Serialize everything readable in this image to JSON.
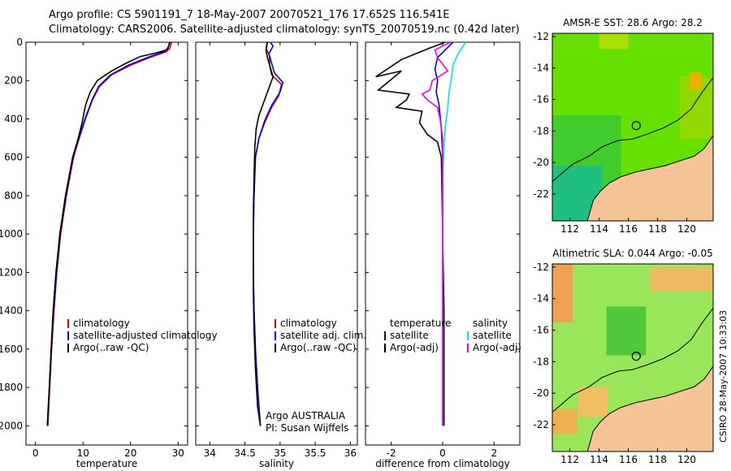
{
  "header": {
    "line1": "Argo profile: CS 5901191_7 18-May-2007 20070521_176 17.652S 116.541E",
    "line2": "Climatology: CARS2006. Satellite-adjusted climatology: synTS_20070519.nc (0.42d later)"
  },
  "credits": {
    "argo": "Argo AUSTRALIA",
    "pi": "PI: Susan Wijffels",
    "stamp": "CSIRO 28-May-2007 10:33:03"
  },
  "colors": {
    "climatology": "#dd0000",
    "satellite": "#0000ee",
    "argo": "#000000",
    "satellite_salinity": "#00e5ee",
    "argo_adj_salinity": "#ee00ee",
    "land": "#f5c496"
  },
  "chart_data": [
    {
      "id": "temperature",
      "type": "line",
      "xlabel": "temperature",
      "xticks": [
        0,
        10,
        20,
        30
      ],
      "xlim": [
        -2,
        32
      ],
      "yticks": [
        0,
        200,
        400,
        600,
        800,
        1000,
        1200,
        1400,
        1600,
        1800,
        2000
      ],
      "ylim": [
        2100,
        0
      ],
      "legend": [
        "climatology",
        "satellite-adjusted climatology",
        "Argo(..raw -QC)"
      ],
      "series": [
        {
          "name": "climatology",
          "color": "#dd0000",
          "points": [
            [
              28.6,
              0
            ],
            [
              28.3,
              30
            ],
            [
              27.5,
              50
            ],
            [
              24,
              80
            ],
            [
              20,
              120
            ],
            [
              16,
              170
            ],
            [
              13.5,
              230
            ],
            [
              12,
              300
            ],
            [
              10.5,
              400
            ],
            [
              9.2,
              500
            ],
            [
              8,
              600
            ],
            [
              6.5,
              800
            ],
            [
              5.3,
              1000
            ],
            [
              4.5,
              1200
            ],
            [
              3.9,
              1400
            ],
            [
              3.4,
              1600
            ],
            [
              3,
              1800
            ],
            [
              2.6,
              2000
            ]
          ]
        },
        {
          "name": "satellite-adjusted climatology",
          "color": "#0000ee",
          "points": [
            [
              28.2,
              0
            ],
            [
              27.9,
              30
            ],
            [
              27,
              50
            ],
            [
              23.5,
              80
            ],
            [
              19.5,
              120
            ],
            [
              15.8,
              170
            ],
            [
              13.3,
              230
            ],
            [
              11.9,
              300
            ],
            [
              10.4,
              400
            ],
            [
              9.1,
              500
            ],
            [
              7.9,
              600
            ],
            [
              6.4,
              800
            ],
            [
              5.2,
              1000
            ],
            [
              4.4,
              1200
            ],
            [
              3.8,
              1400
            ],
            [
              3.3,
              1600
            ],
            [
              2.9,
              1800
            ],
            [
              2.5,
              2000
            ]
          ]
        },
        {
          "name": "Argo(..raw -QC)",
          "color": "#000000",
          "points": [
            [
              28.3,
              0
            ],
            [
              28,
              20
            ],
            [
              27.6,
              40
            ],
            [
              25.5,
              55
            ],
            [
              22,
              75
            ],
            [
              19,
              110
            ],
            [
              16,
              150
            ],
            [
              13,
              200
            ],
            [
              11.5,
              260
            ],
            [
              10.5,
              330
            ],
            [
              9.8,
              420
            ],
            [
              9,
              500
            ],
            [
              7.8,
              600
            ],
            [
              6.3,
              800
            ],
            [
              5.1,
              1000
            ],
            [
              4.3,
              1200
            ],
            [
              3.7,
              1400
            ],
            [
              3.3,
              1600
            ],
            [
              2.9,
              1800
            ],
            [
              2.5,
              2000
            ]
          ]
        }
      ]
    },
    {
      "id": "salinity",
      "type": "line",
      "xlabel": "salinity",
      "xticks": [
        34,
        34.5,
        35,
        35.5,
        36
      ],
      "xlim": [
        33.8,
        36.1
      ],
      "yticks": [
        0,
        200,
        400,
        600,
        800,
        1000,
        1200,
        1400,
        1600,
        1800,
        2000
      ],
      "ylim": [
        2100,
        0
      ],
      "legend": [
        "climatology",
        "satellite adj. clim.",
        "Argo(..raw -QC)"
      ],
      "series": [
        {
          "name": "climatology",
          "color": "#dd0000",
          "points": [
            [
              34.82,
              0
            ],
            [
              34.8,
              30
            ],
            [
              34.85,
              70
            ],
            [
              34.85,
              120
            ],
            [
              34.88,
              170
            ],
            [
              35.02,
              220
            ],
            [
              34.98,
              280
            ],
            [
              34.88,
              340
            ],
            [
              34.78,
              420
            ],
            [
              34.7,
              500
            ],
            [
              34.65,
              600
            ],
            [
              34.63,
              800
            ],
            [
              34.62,
              1000
            ],
            [
              34.62,
              1200
            ],
            [
              34.63,
              1400
            ],
            [
              34.65,
              1600
            ],
            [
              34.68,
              1800
            ],
            [
              34.72,
              2000
            ]
          ]
        },
        {
          "name": "satellite adj. clim.",
          "color": "#0000ee",
          "points": [
            [
              34.86,
              0
            ],
            [
              34.9,
              20
            ],
            [
              34.84,
              60
            ],
            [
              34.88,
              110
            ],
            [
              34.92,
              160
            ],
            [
              35.04,
              210
            ],
            [
              35,
              260
            ],
            [
              34.88,
              330
            ],
            [
              34.78,
              410
            ],
            [
              34.7,
              500
            ],
            [
              34.65,
              600
            ],
            [
              34.63,
              800
            ],
            [
              34.62,
              1000
            ],
            [
              34.62,
              1200
            ],
            [
              34.63,
              1400
            ],
            [
              34.65,
              1600
            ],
            [
              34.68,
              1800
            ],
            [
              34.72,
              2000
            ]
          ]
        },
        {
          "name": "Argo(..raw -QC)",
          "color": "#000000",
          "points": [
            [
              34.82,
              0
            ],
            [
              34.8,
              40
            ],
            [
              34.82,
              80
            ],
            [
              34.86,
              130
            ],
            [
              34.9,
              180
            ],
            [
              34.84,
              240
            ],
            [
              34.78,
              300
            ],
            [
              34.7,
              380
            ],
            [
              34.66,
              450
            ],
            [
              34.64,
              550
            ],
            [
              34.63,
              700
            ],
            [
              34.62,
              900
            ],
            [
              34.62,
              1100
            ],
            [
              34.62,
              1300
            ],
            [
              34.63,
              1500
            ],
            [
              34.65,
              1700
            ],
            [
              34.68,
              1900
            ],
            [
              34.72,
              2000
            ]
          ]
        }
      ]
    },
    {
      "id": "difference",
      "type": "line",
      "xlabel": "difference from climatology",
      "xticks": [
        -2,
        0,
        2
      ],
      "xlim": [
        -3,
        3
      ],
      "yticks": [
        0,
        200,
        400,
        600,
        800,
        1000,
        1200,
        1400,
        1600,
        1800,
        2000
      ],
      "ylim": [
        2100,
        0
      ],
      "legend": [
        {
          "group": "temperature",
          "items": [
            "satellite",
            "Argo(-adj)"
          ]
        },
        {
          "group": "salinity",
          "items": [
            "satellite",
            "Argo(-adj)"
          ]
        }
      ],
      "series": [
        {
          "name": "temperature satellite",
          "color": "#0000ee",
          "points": [
            [
              0.4,
              0
            ],
            [
              0.1,
              40
            ],
            [
              -0.2,
              80
            ],
            [
              -0.3,
              140
            ],
            [
              -0.2,
              200
            ],
            [
              -0.25,
              260
            ],
            [
              -0.15,
              320
            ],
            [
              -0.1,
              380
            ],
            [
              -0.05,
              450
            ],
            [
              0,
              600
            ],
            [
              0,
              1000
            ],
            [
              0,
              1400
            ],
            [
              0,
              2000
            ]
          ]
        },
        {
          "name": "temperature Argo(-adj)",
          "color": "#000000",
          "points": [
            [
              0.1,
              0
            ],
            [
              -0.5,
              30
            ],
            [
              -1.6,
              90
            ],
            [
              -2.6,
              180
            ],
            [
              -1.6,
              150
            ],
            [
              -2.5,
              250
            ],
            [
              -1.3,
              270
            ],
            [
              -1.4,
              300
            ],
            [
              -1.8,
              340
            ],
            [
              -0.8,
              360
            ],
            [
              -0.9,
              420
            ],
            [
              -0.6,
              480
            ],
            [
              -0.2,
              520
            ],
            [
              -0.05,
              600
            ],
            [
              0,
              1000
            ],
            [
              0.05,
              1400
            ],
            [
              0.05,
              1800
            ],
            [
              0.05,
              2000
            ]
          ]
        },
        {
          "name": "salinity satellite",
          "color": "#00e5ee",
          "points": [
            [
              0.9,
              0
            ],
            [
              0.6,
              60
            ],
            [
              0.4,
              120
            ],
            [
              0.35,
              180
            ],
            [
              0.25,
              260
            ],
            [
              0.2,
              340
            ],
            [
              0.1,
              440
            ],
            [
              0.05,
              550
            ],
            [
              0,
              700
            ],
            [
              0,
              1000
            ],
            [
              0,
              1400
            ],
            [
              0,
              2000
            ]
          ]
        },
        {
          "name": "salinity Argo(-adj)",
          "color": "#ee00ee",
          "points": [
            [
              0.3,
              0
            ],
            [
              -0.3,
              40
            ],
            [
              -0.2,
              80
            ],
            [
              0.2,
              150
            ],
            [
              -0.4,
              200
            ],
            [
              -0.5,
              250
            ],
            [
              -0.8,
              270
            ],
            [
              -0.6,
              300
            ],
            [
              -0.2,
              340
            ],
            [
              -0.1,
              400
            ],
            [
              0,
              500
            ],
            [
              0,
              700
            ],
            [
              0,
              1000
            ],
            [
              0,
              1500
            ],
            [
              0,
              2000
            ]
          ]
        }
      ]
    },
    {
      "id": "sst_map",
      "type": "heatmap",
      "title": "AMSR-E SST: 28.6 Argo: 28.2",
      "xticks": [
        "112",
        "114",
        "116",
        "118",
        "120"
      ],
      "yticks": [
        "-12",
        "-14",
        "-16",
        "-18",
        "-20",
        "-22"
      ],
      "xlim": [
        110.8,
        121.8
      ],
      "ylim": [
        -23.7,
        -11.8
      ],
      "float_lon": 116.541,
      "float_lat": -17.652
    },
    {
      "id": "sla_map",
      "type": "heatmap",
      "title": "Altimetric SLA: 0.044 Argo: -0.05",
      "xticks": [
        "112",
        "114",
        "116",
        "118",
        "120"
      ],
      "yticks": [
        "-12",
        "-14",
        "-16",
        "-18",
        "-20",
        "-22"
      ],
      "xlim": [
        110.8,
        121.8
      ],
      "ylim": [
        -23.7,
        -11.8
      ],
      "float_lon": 116.541,
      "float_lat": -17.652
    }
  ]
}
